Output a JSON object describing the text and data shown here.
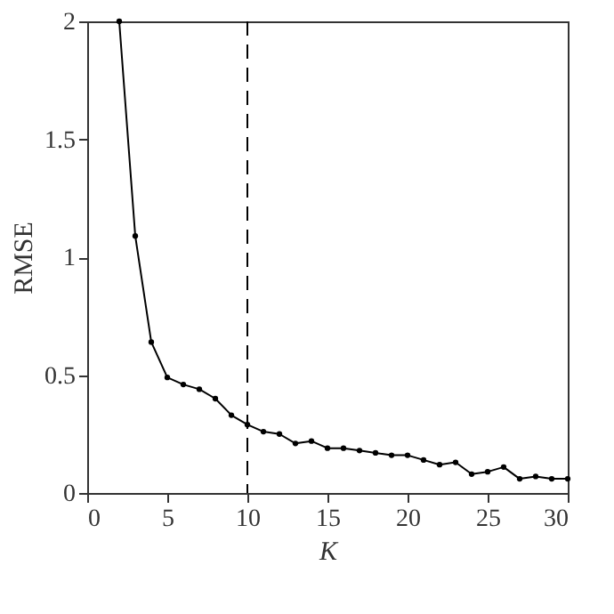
{
  "chart_data": {
    "type": "line",
    "xlabel": "K",
    "ylabel": "RMSE",
    "x": [
      2,
      3,
      4,
      5,
      6,
      7,
      8,
      9,
      10,
      11,
      12,
      13,
      14,
      15,
      16,
      17,
      18,
      19,
      20,
      21,
      22,
      23,
      24,
      25,
      26,
      27,
      28,
      29,
      30
    ],
    "series": [
      {
        "color": "#000000",
        "values": [
          2.0,
          1.09,
          0.64,
          0.49,
          0.46,
          0.44,
          0.4,
          0.33,
          0.29,
          0.26,
          0.25,
          0.21,
          0.22,
          0.19,
          0.19,
          0.18,
          0.17,
          0.16,
          0.16,
          0.14,
          0.12,
          0.13,
          0.08,
          0.09,
          0.11,
          0.06,
          0.07,
          0.06,
          0.06
        ]
      }
    ],
    "xlim": [
      0,
      30
    ],
    "xticks": [
      0,
      5,
      10,
      15,
      20,
      25,
      30
    ],
    "ylim": [
      0,
      2
    ],
    "yticks": [
      0,
      0.5,
      1,
      1.5,
      2
    ],
    "marker": "circle",
    "line_style": "solid",
    "grid": false,
    "ref_lines": [
      {
        "axis": "x",
        "value": 10,
        "color": "#000000",
        "line_style": "dashed"
      }
    ]
  }
}
